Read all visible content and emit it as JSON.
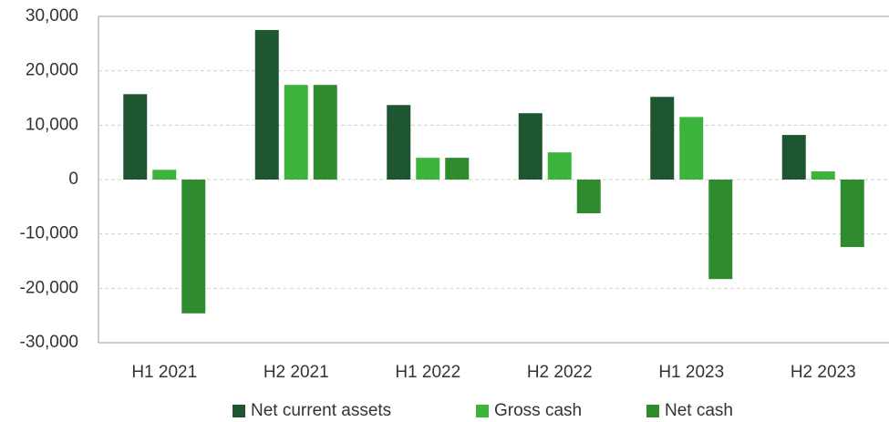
{
  "chart_data": {
    "type": "bar",
    "categories": [
      "H1 2021",
      "H2 2021",
      "H1 2022",
      "H2 2022",
      "H1 2023",
      "H2 2023"
    ],
    "series": [
      {
        "name": "Net current assets",
        "color": "#1e5631",
        "values": [
          15700,
          27500,
          13700,
          12200,
          15200,
          8200
        ]
      },
      {
        "name": "Gross cash",
        "color": "#3cb43c",
        "values": [
          1800,
          17400,
          4000,
          5000,
          11500,
          1500
        ]
      },
      {
        "name": "Net cash",
        "color": "#2e8b2e",
        "values": [
          -24600,
          17400,
          4000,
          -6200,
          -18300,
          -12400
        ]
      }
    ],
    "ylim": [
      -30000,
      30000
    ],
    "yticks": [
      {
        "value": -30000,
        "label": "-30,000"
      },
      {
        "value": -20000,
        "label": "-20,000"
      },
      {
        "value": -10000,
        "label": "-10,000"
      },
      0,
      {
        "value": 10000,
        "label": "10,000"
      },
      {
        "value": 20000,
        "label": "20,000"
      },
      {
        "value": 30000,
        "label": "30,000"
      }
    ],
    "grid": true,
    "legend": "bottom"
  }
}
